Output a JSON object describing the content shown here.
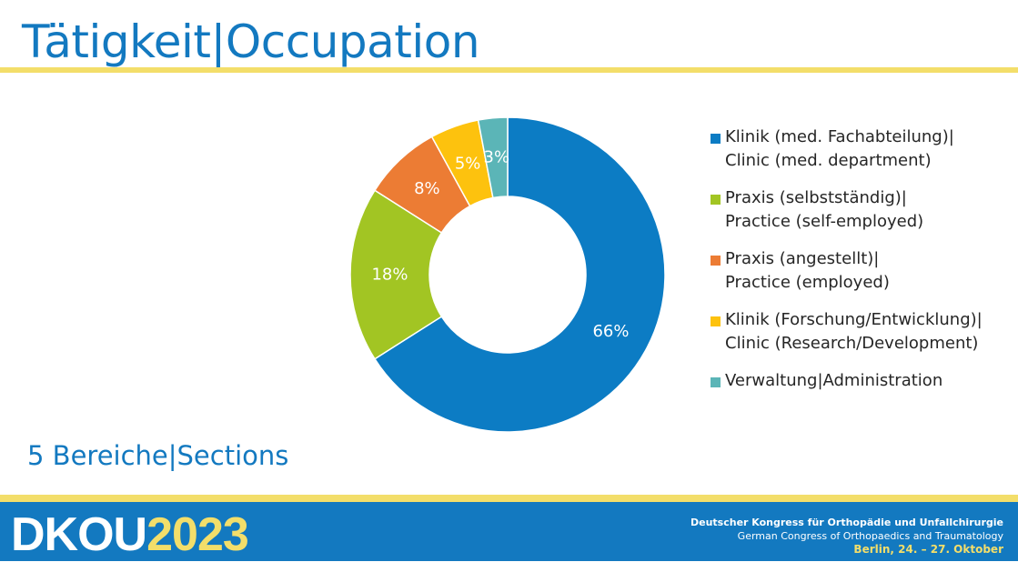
{
  "slide": {
    "title": "Tätigkeit|Occupation",
    "subtitle": "5 Bereiche|Sections"
  },
  "chart_data": {
    "type": "pie",
    "donut": true,
    "categories": [
      "Klinik (med. Fachabteilung)|\nClinic (med. department)",
      "Praxis (selbstständig)|\nPractice (self-employed)",
      "Praxis (angestellt)|\nPractice (employed)",
      "Klinik (Forschung/Entwicklung)|\nClinic (Research/Development)",
      "Verwaltung|Administration"
    ],
    "values": [
      66,
      18,
      8,
      5,
      3
    ],
    "labels": [
      "66%",
      "18%",
      "8%",
      "5%",
      "3%"
    ],
    "colors": [
      "#0c7cc4",
      "#a2c523",
      "#ec7c34",
      "#fdc20e",
      "#5bb5b7"
    ],
    "legend_position": "right"
  },
  "footer": {
    "brand_name": "DKOU",
    "brand_year": "2023",
    "line1": "Deutscher Kongress für Orthopädie und Unfallchirurgie",
    "line2": "German Congress of Orthopaedics and Traumatology",
    "line3": "Berlin, 24. – 27. Oktober"
  },
  "colors": {
    "accent_blue": "#1379c0",
    "accent_yellow": "#f3de6a"
  }
}
